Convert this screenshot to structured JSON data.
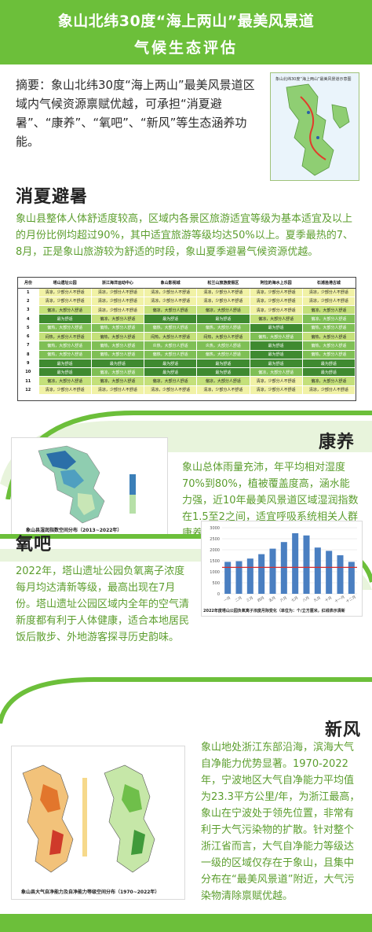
{
  "header": {
    "title_line1": "象山北纬30度“海上两山”最美风景道",
    "title_line2": "气候生态评估"
  },
  "abstract": "摘要：象山北纬30度“海上两山”最美风景道区域内气候资源禀赋优越，可承担“消夏避暑”、“康养”、“氧吧”、“新风”等生态涵养功能。",
  "inset_map_caption": "象山北纬30度“海上两山”最美风景道示意图",
  "sections": {
    "summer": {
      "title": "消夏避暑",
      "text": "象山县整体人体舒适度较高，区域内各景区旅游适宜等级为基本适宜及以上的月份比例均超过90%，其中适宜旅游等级均达50%以上。夏季最热的7、8月，正是象山旅游较为舒适的时段，象山夏季避暑气候资源优越。"
    },
    "health": {
      "title": "康养",
      "text": "象山总体雨量充沛，年平均相对湿度70%到80%，植被覆盖度高，涵水能力强，近10年最美风景道区域湿润指数在1.5至2之间，适宜呼吸系统相关人群康养。",
      "map_caption": "象山县湿润指数空间分布（2013~2022年）"
    },
    "oxygen": {
      "title": "氧吧",
      "text": "2022年，塔山遗址公园负氧离子浓度每月均达清新等级，最高出现在7月份。塔山遗址公园区域内全年的空气清新度都有利于人体健康，适合本地居民饭后散步、外地游客探寻历史韵味。",
      "chart_caption": "2022年度塔山公园负氧离子浓度月际变化（单位为：个/立方厘米，红线表示清新"
    },
    "wind": {
      "title": "新风",
      "text": "象山地处浙江东部沿海，滨海大气自净能力优势显著。1970-2022年，宁波地区大气自净能力平均值为23.3平方公里/年，为浙江最高，象山在宁波处于领先位置，非常有利于大气污染物的扩散。针对整个浙江省而言，大气自净能力等级达一级的区域仅存在于象山，且集中分布在“最美风景道”附近，大气污染物清除禀赋优越。",
      "map_caption": "象山县大气自净能力及自净能力等级空间分布（1970~2022年）"
    }
  },
  "table": {
    "columns": [
      "月份",
      "塔山遗址公园",
      "浙江海洋运动中心",
      "象山影视城",
      "松兰山旅游度假区",
      "阿拉的海水上乐园",
      "石浦渔港古城"
    ],
    "rows": [
      {
        "month": "1",
        "cells": [
          [
            "g1",
            "清凉，少部分人不舒适"
          ],
          [
            "g1",
            "清凉，少部分人不舒适"
          ],
          [
            "g1",
            "清凉，少部分人不舒适"
          ],
          [
            "g1",
            "清凉，少部分人不舒适"
          ],
          [
            "g1",
            "清凉，少部分人不舒适"
          ],
          [
            "g1",
            "清凉，少部分人不舒适"
          ]
        ]
      },
      {
        "month": "2",
        "cells": [
          [
            "g1",
            "清凉，少部分人不舒适"
          ],
          [
            "g1",
            "清凉，少部分人不舒适"
          ],
          [
            "g1",
            "清凉，少部分人不舒适"
          ],
          [
            "g1",
            "清凉，少部分人不舒适"
          ],
          [
            "g1",
            "清凉，少部分人不舒适"
          ],
          [
            "g1",
            "清凉，少部分人不舒适"
          ]
        ]
      },
      {
        "month": "3",
        "cells": [
          [
            "g2",
            "偏凉，大部分人舒适"
          ],
          [
            "g1",
            "清凉，少部分人不舒适"
          ],
          [
            "g2",
            "偏凉，大部分人舒适"
          ],
          [
            "g2",
            "偏凉，大部分人舒适"
          ],
          [
            "g1",
            "清凉，少部分人不舒适"
          ],
          [
            "g2",
            "偏凉，大部分人舒适"
          ]
        ]
      },
      {
        "month": "4",
        "cells": [
          [
            "g4",
            "最为舒适"
          ],
          [
            "g2",
            "偏凉，大部分人舒适"
          ],
          [
            "g4",
            "最为舒适"
          ],
          [
            "g4",
            "最为舒适"
          ],
          [
            "g2",
            "偏凉，大部分人舒适"
          ],
          [
            "g3",
            "偏凉，大部分人舒适"
          ]
        ]
      },
      {
        "month": "5",
        "cells": [
          [
            "g3",
            "偏热，大部分人舒适"
          ],
          [
            "g3",
            "偏热，大部分人舒适"
          ],
          [
            "g3",
            "偏热，大部分人舒适"
          ],
          [
            "g3",
            "偏热，大部分人舒适"
          ],
          [
            "g4",
            "最为舒适"
          ],
          [
            "g3",
            "偏热，大部分人舒适"
          ]
        ]
      },
      {
        "month": "6",
        "cells": [
          [
            "g2",
            "闷热，大部分人不舒适"
          ],
          [
            "g2",
            "偏热，大部分人舒适"
          ],
          [
            "g2",
            "闷热，大部分人不舒适"
          ],
          [
            "g2",
            "闷热，大部分人不舒适"
          ],
          [
            "g3",
            "偏热，大部分人舒适"
          ],
          [
            "g2",
            "偏热，大部分人舒适"
          ]
        ]
      },
      {
        "month": "7",
        "cells": [
          [
            "g3",
            "偏热，大部分人舒适"
          ],
          [
            "g3",
            "偏热，大部分人舒适"
          ],
          [
            "g3",
            "炎热，大部分人舒适"
          ],
          [
            "g3",
            "炎热，大部分人舒适"
          ],
          [
            "g4",
            "最为舒适"
          ],
          [
            "g3",
            "偏热，大部分人舒适"
          ]
        ]
      },
      {
        "month": "8",
        "cells": [
          [
            "g3",
            "偏热，大部分人舒适"
          ],
          [
            "g3",
            "偏热，大部分人舒适"
          ],
          [
            "g3",
            "偏热，大部分人舒适"
          ],
          [
            "g3",
            "偏热，大部分人舒适"
          ],
          [
            "g4",
            "最为舒适"
          ],
          [
            "g3",
            "偏热，大部分人舒适"
          ]
        ]
      },
      {
        "month": "9",
        "cells": [
          [
            "g4",
            "最为舒适"
          ],
          [
            "g4",
            "最为舒适"
          ],
          [
            "g4",
            "最为舒适"
          ],
          [
            "g4",
            "最为舒适"
          ],
          [
            "g4",
            "最为舒适"
          ],
          [
            "g4",
            "最为舒适"
          ]
        ]
      },
      {
        "month": "10",
        "cells": [
          [
            "g4",
            "最为舒适"
          ],
          [
            "g3",
            "偏凉，大部分人舒适"
          ],
          [
            "g4",
            "最为舒适"
          ],
          [
            "g4",
            "最为舒适"
          ],
          [
            "g3",
            "偏凉，大部分人舒适"
          ],
          [
            "g4",
            "最为舒适"
          ]
        ]
      },
      {
        "month": "11",
        "cells": [
          [
            "g2",
            "偏凉，大部分人舒适"
          ],
          [
            "g2",
            "偏凉，大部分人舒适"
          ],
          [
            "g2",
            "偏凉，大部分人舒适"
          ],
          [
            "g2",
            "偏凉，大部分人舒适"
          ],
          [
            "g1",
            "清凉，少部分人不舒适"
          ],
          [
            "g2",
            "偏凉，大部分人舒适"
          ]
        ]
      },
      {
        "month": "12",
        "cells": [
          [
            "g1",
            "清凉，少部分人不舒适"
          ],
          [
            "g1",
            "清凉，少部分人不舒适"
          ],
          [
            "g1",
            "清凉，少部分人不舒适"
          ],
          [
            "g1",
            "清凉，少部分人不舒适"
          ],
          [
            "g1",
            "清凉，少部分人不舒适"
          ],
          [
            "g1",
            "清凉，少部分人不舒适"
          ]
        ]
      }
    ]
  },
  "chart_data": {
    "type": "bar",
    "categories": [
      "一月",
      "二月",
      "三月",
      "四月",
      "五月",
      "六月",
      "七月",
      "八月",
      "九月",
      "十月",
      "十一月",
      "十二月"
    ],
    "values": [
      1450,
      1480,
      1600,
      1800,
      2050,
      2350,
      2750,
      2650,
      2100,
      1950,
      1750,
      1450
    ],
    "yticks": [
      0,
      500,
      1000,
      1500,
      2000,
      2500,
      3000
    ],
    "ylim": [
      0,
      3000
    ],
    "threshold": 1200,
    "bar_color": "#4a7fc1",
    "threshold_color": "#d62b2b"
  },
  "colors": {
    "accent": "#6cbf3a",
    "text_green": "#5c9e2e"
  }
}
